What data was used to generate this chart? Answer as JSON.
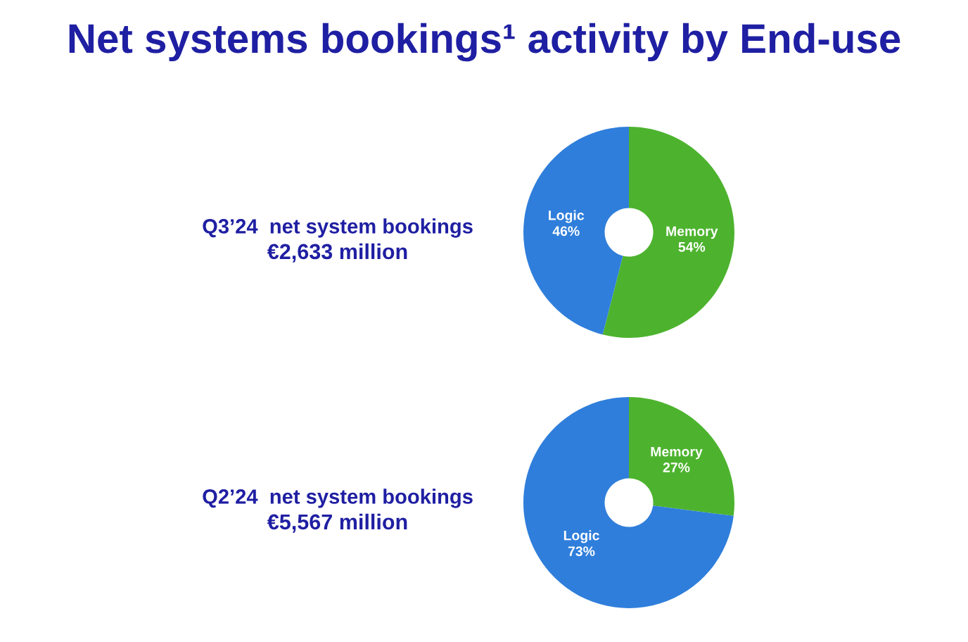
{
  "chart_data": [
    {
      "type": "other",
      "title": "Net systems bookings¹ activity by End-use"
    },
    {
      "type": "donut",
      "title": "Q3’24  net system bookings",
      "subtitle": "€2,633 million",
      "categories": [
        "Memory",
        "Logic"
      ],
      "values": [
        54,
        46
      ],
      "value_labels": [
        "54%",
        "46%"
      ],
      "colors": [
        "#4db32e",
        "#2f7edb"
      ]
    },
    {
      "type": "donut",
      "title": "Q2’24  net system bookings",
      "subtitle": "€5,567 million",
      "categories": [
        "Memory",
        "Logic"
      ],
      "values": [
        27,
        73
      ],
      "value_labels": [
        "27%",
        "73%"
      ],
      "colors": [
        "#4db32e",
        "#2f7edb"
      ]
    }
  ]
}
